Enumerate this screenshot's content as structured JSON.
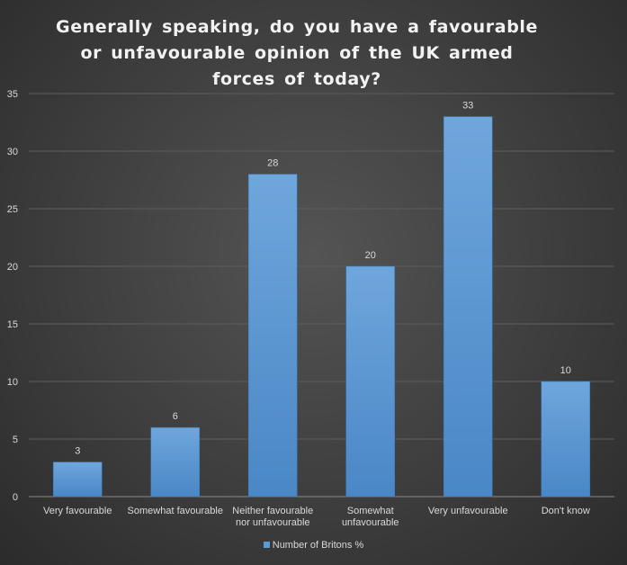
{
  "chart_data": {
    "type": "bar",
    "title": "Generally speaking, do you have a favourable or unfavourable opinion of the UK armed forces of today?",
    "categories": [
      [
        "Very favourable"
      ],
      [
        "Somewhat favourable"
      ],
      [
        "Neither favourable",
        "nor unfavourable"
      ],
      [
        "Somewhat",
        "unfavourable"
      ],
      [
        "Very unfavourable"
      ],
      [
        "Don't know"
      ]
    ],
    "series": [
      {
        "name": "Number of Britons %",
        "values": [
          3,
          6,
          28,
          20,
          33,
          10
        ]
      }
    ],
    "ylim": [
      0,
      35
    ],
    "yticks": [
      0,
      5,
      10,
      15,
      20,
      25,
      30,
      35
    ],
    "grid": true,
    "legend_position": "bottom",
    "bar_color": "#5b9bd5"
  }
}
